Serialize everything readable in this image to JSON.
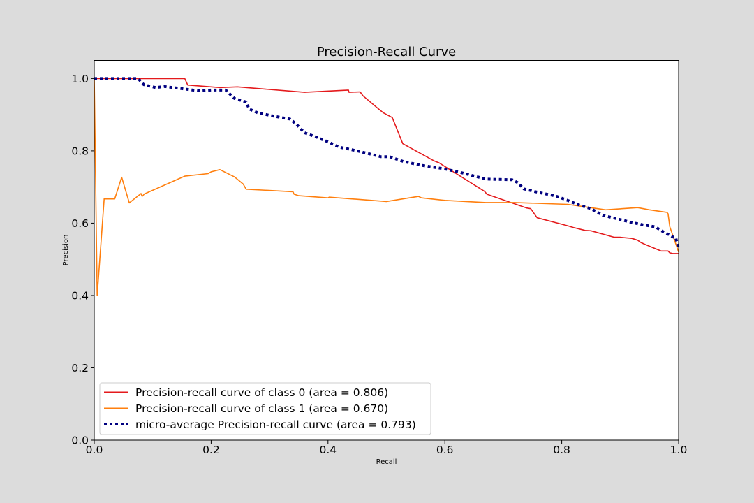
{
  "chart_data": {
    "type": "line",
    "title": "Precision-Recall Curve",
    "xlabel": "Recall",
    "ylabel": "Precision",
    "xlim": [
      0.0,
      1.0
    ],
    "ylim": [
      0.0,
      1.05
    ],
    "xticks": [
      0.0,
      0.2,
      0.4,
      0.6,
      0.8,
      1.0
    ],
    "xtick_labels": [
      "0.0",
      "0.2",
      "0.4",
      "0.6",
      "0.8",
      "1.0"
    ],
    "yticks": [
      0.0,
      0.2,
      0.4,
      0.6,
      0.8,
      1.0
    ],
    "ytick_labels": [
      "0.0",
      "0.2",
      "0.4",
      "0.6",
      "0.8",
      "1.0"
    ],
    "grid": false,
    "legend_position": "bottom-left",
    "series": [
      {
        "name": "Precision-recall curve of class 0 (area = 0.806)",
        "color": "#e41a1c",
        "style": "solid",
        "x": [
          0.0,
          0.155,
          0.16,
          0.215,
          0.245,
          0.36,
          0.435,
          0.436,
          0.455,
          0.46,
          0.485,
          0.495,
          0.51,
          0.528,
          0.582,
          0.59,
          0.668,
          0.672,
          0.74,
          0.747,
          0.758,
          0.81,
          0.82,
          0.84,
          0.85,
          0.89,
          0.9,
          0.92,
          0.93,
          0.935,
          0.94,
          0.955,
          0.97,
          0.982,
          0.985,
          0.99,
          1.0
        ],
        "y": [
          1.0,
          1.0,
          0.982,
          0.975,
          0.977,
          0.962,
          0.968,
          0.962,
          0.963,
          0.952,
          0.918,
          0.905,
          0.892,
          0.82,
          0.772,
          0.767,
          0.688,
          0.68,
          0.642,
          0.64,
          0.615,
          0.593,
          0.588,
          0.58,
          0.579,
          0.561,
          0.561,
          0.558,
          0.553,
          0.547,
          0.543,
          0.533,
          0.523,
          0.523,
          0.518,
          0.516,
          0.516
        ]
      },
      {
        "name": "Precision-recall curve of class 1 (area = 0.670)",
        "color": "#ff7f0e",
        "style": "solid",
        "x": [
          0.0,
          0.005,
          0.017,
          0.035,
          0.047,
          0.06,
          0.08,
          0.082,
          0.086,
          0.155,
          0.195,
          0.2,
          0.215,
          0.24,
          0.255,
          0.26,
          0.34,
          0.342,
          0.35,
          0.4,
          0.402,
          0.5,
          0.555,
          0.56,
          0.6,
          0.67,
          0.72,
          0.81,
          0.84,
          0.875,
          0.93,
          0.95,
          0.98,
          0.982,
          0.985,
          1.0
        ],
        "y": [
          1.0,
          0.4,
          0.667,
          0.667,
          0.727,
          0.656,
          0.682,
          0.674,
          0.681,
          0.73,
          0.737,
          0.742,
          0.748,
          0.728,
          0.708,
          0.694,
          0.687,
          0.68,
          0.676,
          0.67,
          0.672,
          0.66,
          0.674,
          0.67,
          0.663,
          0.657,
          0.657,
          0.652,
          0.645,
          0.637,
          0.643,
          0.637,
          0.63,
          0.626,
          0.59,
          0.52
        ]
      },
      {
        "name": "micro-average Precision-recall curve (area = 0.793)",
        "color": "#000080",
        "style": "dotted",
        "x": [
          0.0,
          0.075,
          0.085,
          0.105,
          0.12,
          0.15,
          0.18,
          0.2,
          0.225,
          0.24,
          0.26,
          0.265,
          0.28,
          0.31,
          0.335,
          0.345,
          0.36,
          0.38,
          0.4,
          0.42,
          0.45,
          0.47,
          0.49,
          0.505,
          0.53,
          0.56,
          0.6,
          0.63,
          0.67,
          0.715,
          0.725,
          0.735,
          0.76,
          0.79,
          0.81,
          0.83,
          0.85,
          0.87,
          0.9,
          0.92,
          0.94,
          0.96,
          0.975,
          0.985,
          0.99,
          0.995,
          1.0
        ],
        "y": [
          1.0,
          1.0,
          0.983,
          0.975,
          0.978,
          0.972,
          0.966,
          0.968,
          0.968,
          0.945,
          0.935,
          0.916,
          0.905,
          0.895,
          0.888,
          0.875,
          0.85,
          0.838,
          0.825,
          0.81,
          0.8,
          0.792,
          0.784,
          0.784,
          0.77,
          0.76,
          0.75,
          0.739,
          0.722,
          0.72,
          0.712,
          0.695,
          0.685,
          0.675,
          0.663,
          0.65,
          0.64,
          0.622,
          0.61,
          0.602,
          0.595,
          0.59,
          0.575,
          0.567,
          0.562,
          0.56,
          0.53
        ]
      }
    ]
  }
}
